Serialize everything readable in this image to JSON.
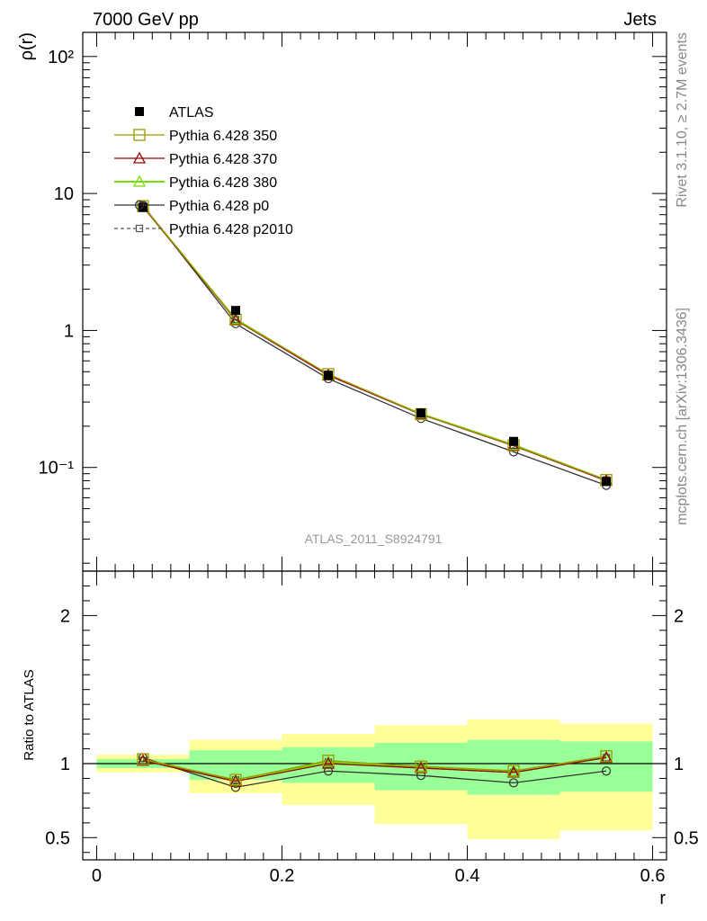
{
  "header": {
    "left": "7000 GeV pp",
    "right": "Jets"
  },
  "sidebar": {
    "rivet": "Rivet 3.1.10, ≥ 2.7M events",
    "mcplots": "mcplots.cern.ch [arXiv:1306.3436]"
  },
  "watermark": "ATLAS_2011_S8924791",
  "chart_data": [
    {
      "type": "line",
      "panel": "main",
      "ylabel": "ρ(r)",
      "xlabel": "",
      "yscale": "log",
      "xlim": [
        -0.015,
        0.615
      ],
      "ylim": [
        0.0175,
        150
      ],
      "ytick_labels": [
        "10⁻¹",
        "1",
        "10",
        "10²"
      ],
      "x": [
        0.05,
        0.15,
        0.25,
        0.35,
        0.45,
        0.55
      ],
      "legend_position": "top-left",
      "series": [
        {
          "name": "ATLAS",
          "color": "#000000",
          "marker": "filled-square",
          "values": [
            7.9,
            1.4,
            0.47,
            0.25,
            0.155,
            0.079
          ]
        },
        {
          "name": "Pythia 6.428 350",
          "color": "#999900",
          "marker": "open-square",
          "values": [
            8.1,
            1.2,
            0.48,
            0.245,
            0.145,
            0.081
          ]
        },
        {
          "name": "Pythia 6.428 370",
          "color": "#990000",
          "marker": "open-triangle",
          "values": [
            8.0,
            1.19,
            0.47,
            0.244,
            0.144,
            0.08
          ]
        },
        {
          "name": "Pythia 6.428 380",
          "color": "#77dd00",
          "marker": "open-triangle",
          "values": [
            8.05,
            1.21,
            0.475,
            0.246,
            0.146,
            0.081
          ]
        },
        {
          "name": "Pythia 6.428 p0",
          "color": "#333333",
          "marker": "open-circle",
          "values": [
            8.2,
            1.12,
            0.445,
            0.228,
            0.13,
            0.074
          ]
        },
        {
          "name": "Pythia 6.428 p2010",
          "color": "#555555",
          "marker": "small-open-square",
          "dashed": true,
          "values": [
            8.1,
            1.2,
            0.48,
            0.245,
            0.145,
            0.081
          ]
        }
      ]
    },
    {
      "type": "line",
      "panel": "ratio",
      "ylabel": "Ratio to ATLAS",
      "xlabel": "r",
      "xlim": [
        -0.015,
        0.615
      ],
      "ylim": [
        0.35,
        2.3
      ],
      "yticks": [
        0.5,
        1,
        2
      ],
      "xticks": [
        0,
        0.2,
        0.4,
        0.6
      ],
      "x": [
        0.05,
        0.15,
        0.25,
        0.35,
        0.45,
        0.55
      ],
      "bands": {
        "bins": [
          [
            0.0,
            0.1
          ],
          [
            0.1,
            0.2
          ],
          [
            0.2,
            0.3
          ],
          [
            0.3,
            0.4
          ],
          [
            0.4,
            0.5
          ],
          [
            0.5,
            0.6
          ]
        ],
        "inner": [
          [
            0.97,
            1.03
          ],
          [
            0.89,
            1.09
          ],
          [
            0.87,
            1.11
          ],
          [
            0.82,
            1.14
          ],
          [
            0.79,
            1.16
          ],
          [
            0.81,
            1.15
          ]
        ],
        "outer": [
          [
            0.94,
            1.06
          ],
          [
            0.8,
            1.16
          ],
          [
            0.72,
            1.2
          ],
          [
            0.59,
            1.26
          ],
          [
            0.49,
            1.3
          ],
          [
            0.55,
            1.27
          ]
        ],
        "inner_color": "#99ff99",
        "outer_color": "#ffff99"
      },
      "series": [
        {
          "name": "Pythia 6.428 350",
          "color": "#999900",
          "marker": "open-square",
          "values": [
            1.03,
            0.89,
            1.02,
            0.98,
            0.95,
            1.05
          ]
        },
        {
          "name": "Pythia 6.428 370",
          "color": "#990000",
          "marker": "open-triangle",
          "values": [
            1.02,
            0.88,
            1.0,
            0.97,
            0.94,
            1.04
          ]
        },
        {
          "name": "Pythia 6.428 380",
          "color": "#77dd00",
          "marker": "open-triangle",
          "values": [
            1.02,
            0.89,
            1.01,
            0.98,
            0.95,
            1.04
          ]
        },
        {
          "name": "Pythia 6.428 p0",
          "color": "#333333",
          "marker": "open-circle",
          "values": [
            1.04,
            0.84,
            0.95,
            0.92,
            0.87,
            0.95
          ]
        },
        {
          "name": "Pythia 6.428 p2010",
          "color": "#555555",
          "marker": "small-open-square",
          "dashed": true,
          "values": [
            1.02,
            0.89,
            1.01,
            0.97,
            0.94,
            1.04
          ]
        }
      ]
    }
  ]
}
